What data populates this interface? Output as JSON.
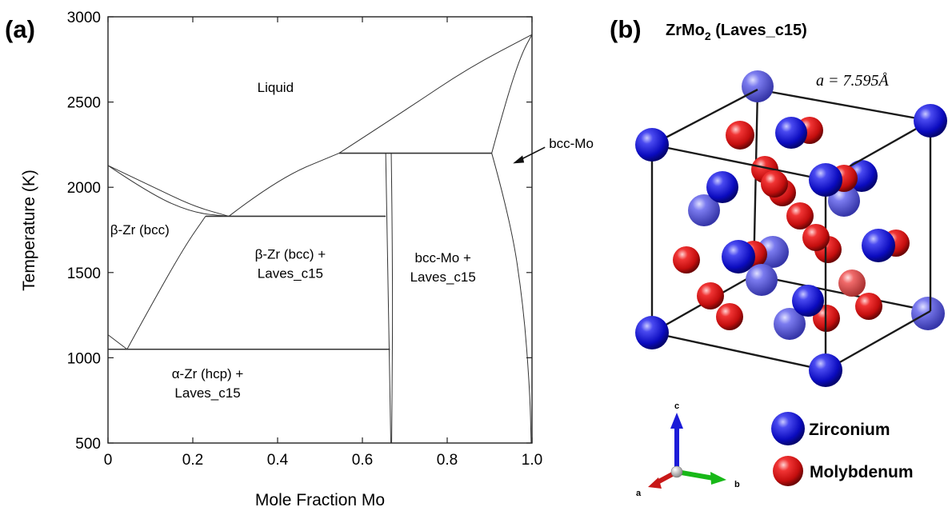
{
  "panel_a": {
    "label": "(a)"
  },
  "panel_b": {
    "label": "(b)",
    "title_main": "ZrMo",
    "title_sub": "2",
    "title_rest": " (Laves_c15)",
    "lattice": "a = 7.595Å",
    "axes": {
      "a": "a",
      "b": "b",
      "c": "c"
    },
    "legend": [
      {
        "name": "Zirconium",
        "color": "#1010d8"
      },
      {
        "name": "Molybdenum",
        "color": "#e01a1a"
      }
    ]
  },
  "chart_data": {
    "type": "phase-diagram",
    "xlabel": "Mole Fraction Mo",
    "ylabel": "Temperature (K)",
    "xlim": [
      0,
      1
    ],
    "ylim": [
      500,
      3000
    ],
    "xticks": [
      "0",
      "0.2",
      "0.4",
      "0.6",
      "0.8",
      "1.0"
    ],
    "yticks": [
      "500",
      "1000",
      "1500",
      "2000",
      "2500",
      "3000"
    ],
    "grid": false,
    "regions": [
      {
        "lines": [
          "Liquid"
        ],
        "x": 0.395,
        "y": 2560
      },
      {
        "lines": [
          "β-Zr (bcc)"
        ],
        "x": 0.075,
        "y": 1725
      },
      {
        "lines": [
          "β-Zr (bcc) +",
          "Laves_c15"
        ],
        "x": 0.43,
        "y": 1580
      },
      {
        "lines": [
          "bcc-Mo +",
          "Laves_c15"
        ],
        "x": 0.79,
        "y": 1560
      },
      {
        "lines": [
          "α-Zr (hcp) +",
          "Laves_c15"
        ],
        "x": 0.235,
        "y": 880
      }
    ],
    "annotation": {
      "text": "bcc-Mo",
      "x": 1.04,
      "y": 2230
    },
    "boundaries": [
      {
        "name": "liquidus-left",
        "points": [
          [
            0,
            2128
          ],
          [
            0.1,
            2010
          ],
          [
            0.2,
            1890
          ],
          [
            0.285,
            1830
          ]
        ]
      },
      {
        "name": "solidus-left",
        "points": [
          [
            0,
            2128
          ],
          [
            0.1,
            1960
          ],
          [
            0.2,
            1850
          ],
          [
            0.285,
            1830
          ]
        ]
      },
      {
        "name": "liquidus-mid",
        "points": [
          [
            0.285,
            1830
          ],
          [
            0.4,
            2050
          ],
          [
            0.545,
            2200
          ]
        ]
      },
      {
        "name": "liquidus-right",
        "points": [
          [
            0.545,
            2200
          ],
          [
            0.7,
            2450
          ],
          [
            0.85,
            2700
          ],
          [
            1.0,
            2896
          ]
        ]
      },
      {
        "name": "solidus-right",
        "points": [
          [
            0.905,
            2200
          ],
          [
            0.94,
            2520
          ],
          [
            0.975,
            2780
          ],
          [
            1.0,
            2896
          ]
        ]
      },
      {
        "name": "solvus-bcc-Mo",
        "points": [
          [
            0.905,
            2200
          ],
          [
            0.95,
            1800
          ],
          [
            0.98,
            1300
          ],
          [
            0.995,
            800
          ],
          [
            0.998,
            500
          ]
        ]
      },
      {
        "name": "bcc-Zr-boundary",
        "points": [
          [
            0.045,
            1050
          ],
          [
            0.1,
            1300
          ],
          [
            0.18,
            1650
          ],
          [
            0.23,
            1830
          ]
        ]
      },
      {
        "name": "alpha-Zr-boundary",
        "points": [
          [
            0,
            1135
          ],
          [
            0.045,
            1050
          ]
        ]
      },
      {
        "name": "eutectoid",
        "points": [
          [
            0,
            1050
          ],
          [
            0.665,
            1050
          ]
        ]
      },
      {
        "name": "eutectic",
        "points": [
          [
            0.23,
            1830
          ],
          [
            0.655,
            1830
          ]
        ]
      },
      {
        "name": "peritectic",
        "points": [
          [
            0.545,
            2200
          ],
          [
            0.905,
            2200
          ]
        ]
      },
      {
        "name": "laves-left",
        "points": [
          [
            0.655,
            2200
          ],
          [
            0.66,
            1500
          ],
          [
            0.667,
            500
          ]
        ]
      },
      {
        "name": "laves-right",
        "points": [
          [
            0.668,
            2200
          ],
          [
            0.672,
            1500
          ],
          [
            0.669,
            500
          ]
        ]
      }
    ]
  }
}
